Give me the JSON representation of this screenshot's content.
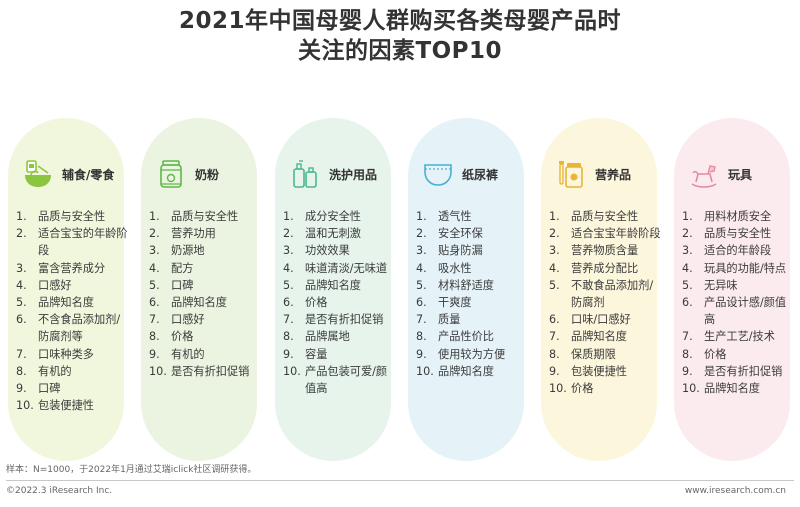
{
  "title": {
    "line1": "2021年中国母婴人群购买各类母婴产品时",
    "line2": "关注的因素TOP10"
  },
  "colors": {
    "card1": "#f1f7dd",
    "card2": "#eaf4e0",
    "card3": "#e6f4ec",
    "card4": "#e5f3f8",
    "card5": "#fbf6dc",
    "card6": "#fcebee"
  },
  "categories": [
    {
      "name": "辅食/零食",
      "icon": "baby-food-bowl-icon",
      "items": [
        "品质与安全性",
        "适合宝宝的年龄阶段",
        "富含营养成分",
        "口感好",
        "品牌知名度",
        "不含食品添加剂/防腐剂等",
        "口味种类多",
        "有机的",
        "口碑",
        "包装便捷性"
      ]
    },
    {
      "name": "奶粉",
      "icon": "milk-powder-can-icon",
      "items": [
        "品质与安全性",
        "营养功用",
        "奶源地",
        "配方",
        "口碑",
        "品牌知名度",
        "口感好",
        "价格",
        "有机的",
        "是否有折扣促销"
      ]
    },
    {
      "name": "洗护用品",
      "icon": "wash-care-bottles-icon",
      "items": [
        "成分安全性",
        "温和无刺激",
        "功效效果",
        "味道清淡/无味道",
        "品牌知名度",
        "价格",
        "是否有折扣促销",
        "品牌属地",
        "容量",
        "产品包装可爱/颜值高"
      ]
    },
    {
      "name": "纸尿裤",
      "icon": "diaper-icon",
      "items": [
        "透气性",
        "安全环保",
        "贴身防漏",
        "吸水性",
        "材料舒适度",
        "干爽度",
        "质量",
        "产品性价比",
        "使用较为方便",
        "品牌知名度"
      ]
    },
    {
      "name": "营养品",
      "icon": "nutrition-jar-icon",
      "items": [
        "品质与安全性",
        "适合宝宝年龄阶段",
        "营养物质含量",
        "营养成分配比",
        "不敢食品添加剂/防腐剂",
        "口味/口感好",
        "品牌知名度",
        "保质期限",
        "包装便捷性",
        "价格"
      ]
    },
    {
      "name": "玩具",
      "icon": "rocking-horse-icon",
      "items": [
        "用料材质安全",
        "品质与安全性",
        "适合的年龄段",
        "玩具的功能/特点",
        "无异味",
        "产品设计感/颜值高",
        "生产工艺/技术",
        "价格",
        "是否有折扣促销",
        "品牌知名度"
      ]
    }
  ],
  "footnote": "样本：N=1000，于2022年1月通过艾瑞iclick社区调研获得。",
  "footer": {
    "left": "©2022.3 iResearch Inc.",
    "right": "www.iresearch.com.cn"
  }
}
